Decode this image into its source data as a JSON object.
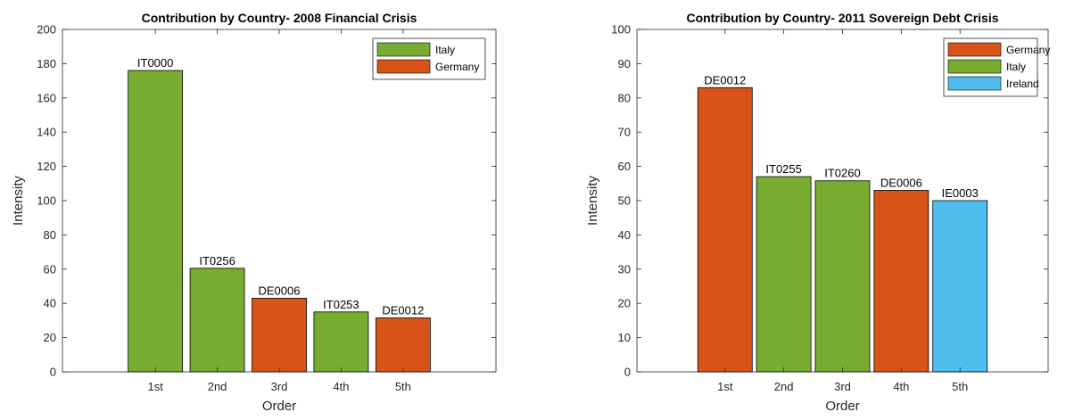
{
  "chart_data": [
    {
      "type": "bar",
      "title": "Contribution by Country- 2008 Financial Crisis",
      "xlabel": "Order",
      "ylabel": "Intensity",
      "ylim": [
        0,
        200
      ],
      "ytick_step": 20,
      "categories": [
        "1st",
        "2nd",
        "3rd",
        "4th",
        "5th"
      ],
      "values": [
        176,
        60.5,
        43,
        35,
        31.5
      ],
      "bar_labels": [
        "IT0000",
        "IT0256",
        "DE0006",
        "IT0253",
        "DE0012"
      ],
      "bar_countries": [
        "Italy",
        "Italy",
        "Germany",
        "Italy",
        "Germany"
      ],
      "legend": [
        {
          "name": "Italy",
          "color": "#77AC30"
        },
        {
          "name": "Germany",
          "color": "#D95319"
        }
      ],
      "legend_position": "top-right",
      "grid": false
    },
    {
      "type": "bar",
      "title": "Contribution by Country- 2011 Sovereign Debt Crisis",
      "xlabel": "Order",
      "ylabel": "Intensity",
      "ylim": [
        0,
        100
      ],
      "ytick_step": 10,
      "categories": [
        "1st",
        "2nd",
        "3rd",
        "4th",
        "5th"
      ],
      "values": [
        83,
        57,
        55.8,
        53,
        50
      ],
      "bar_labels": [
        "DE0012",
        "IT0255",
        "IT0260",
        "DE0006",
        "IE0003"
      ],
      "bar_countries": [
        "Germany",
        "Italy",
        "Italy",
        "Germany",
        "Ireland"
      ],
      "legend": [
        {
          "name": "Germany",
          "color": "#D95319"
        },
        {
          "name": "Italy",
          "color": "#77AC30"
        },
        {
          "name": "Ireland",
          "color": "#4DBEEE"
        }
      ],
      "legend_position": "top-right",
      "grid": false
    }
  ]
}
